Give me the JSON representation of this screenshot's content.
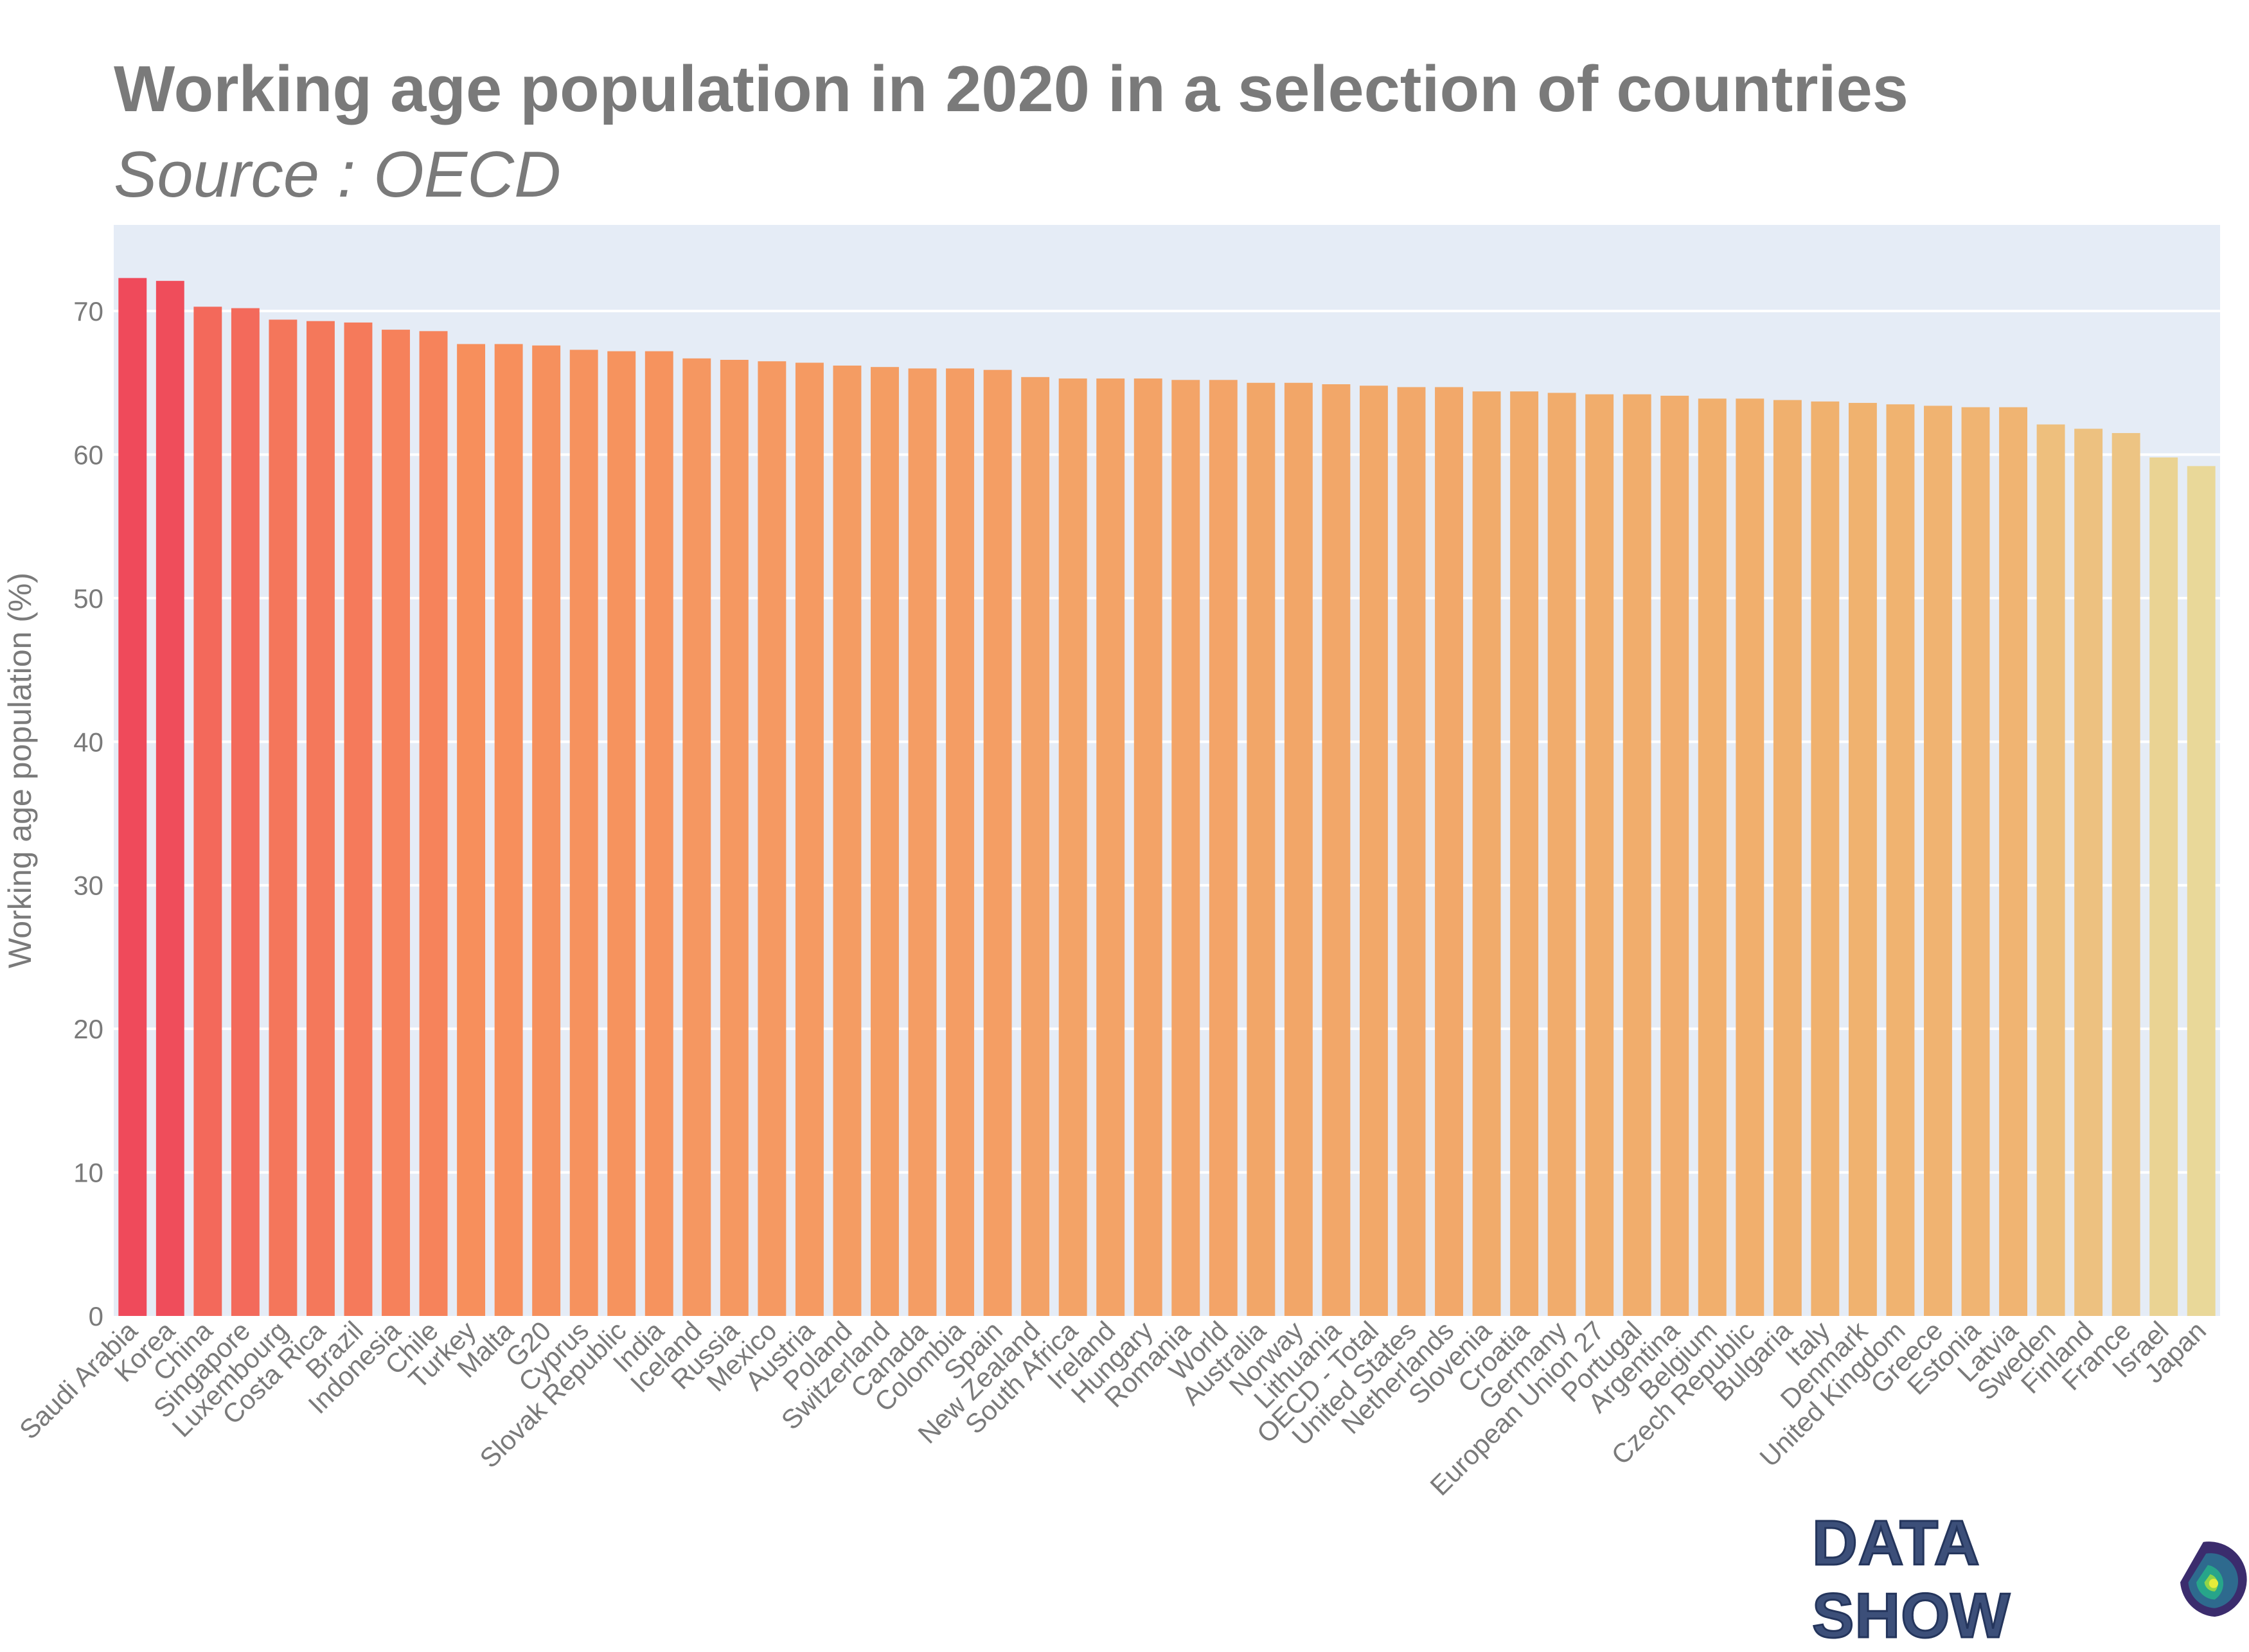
{
  "chart_data": {
    "type": "bar",
    "title": "Working age population in 2020 in a selection of countries",
    "subtitle": "Source : OECD",
    "xlabel": "",
    "ylabel": "Working age population (%)",
    "ylim": [
      0,
      76
    ],
    "yticks": [
      0,
      10,
      20,
      30,
      40,
      50,
      60,
      70
    ],
    "grid": true,
    "legend": "none",
    "plot_background": "#e5ecf6",
    "color_scale": [
      "#ef4a5b",
      "#f78d5b",
      "#f0b26f",
      "#e9d899"
    ],
    "categories": [
      "Saudi Arabia",
      "Korea",
      "China",
      "Singapore",
      "Luxembourg",
      "Costa Rica",
      "Brazil",
      "Indonesia",
      "Chile",
      "Turkey",
      "Malta",
      "G20",
      "Cyprus",
      "Slovak Republic",
      "India",
      "Iceland",
      "Russia",
      "Mexico",
      "Austria",
      "Poland",
      "Switzerland",
      "Canada",
      "Colombia",
      "Spain",
      "New Zealand",
      "South Africa",
      "Ireland",
      "Hungary",
      "Romania",
      "World",
      "Australia",
      "Norway",
      "Lithuania",
      "OECD - Total",
      "United States",
      "Netherlands",
      "Slovenia",
      "Croatia",
      "Germany",
      "European Union 27",
      "Portugal",
      "Argentina",
      "Belgium",
      "Czech Republic",
      "Bulgaria",
      "Italy",
      "Denmark",
      "United Kingdom",
      "Greece",
      "Estonia",
      "Latvia",
      "Sweden",
      "Finland",
      "France",
      "Israel",
      "Japan"
    ],
    "values": [
      72.3,
      72.1,
      70.3,
      70.2,
      69.4,
      69.3,
      69.2,
      68.7,
      68.6,
      67.7,
      67.7,
      67.6,
      67.3,
      67.2,
      67.2,
      66.7,
      66.6,
      66.5,
      66.4,
      66.2,
      66.1,
      66.0,
      66.0,
      65.9,
      65.4,
      65.3,
      65.3,
      65.3,
      65.2,
      65.2,
      65.0,
      65.0,
      64.9,
      64.8,
      64.7,
      64.7,
      64.4,
      64.4,
      64.3,
      64.2,
      64.2,
      64.1,
      63.9,
      63.9,
      63.8,
      63.7,
      63.6,
      63.5,
      63.4,
      63.3,
      63.3,
      62.1,
      61.8,
      61.5,
      59.8,
      59.2
    ]
  },
  "logo": {
    "text": "DATA SHOW"
  }
}
